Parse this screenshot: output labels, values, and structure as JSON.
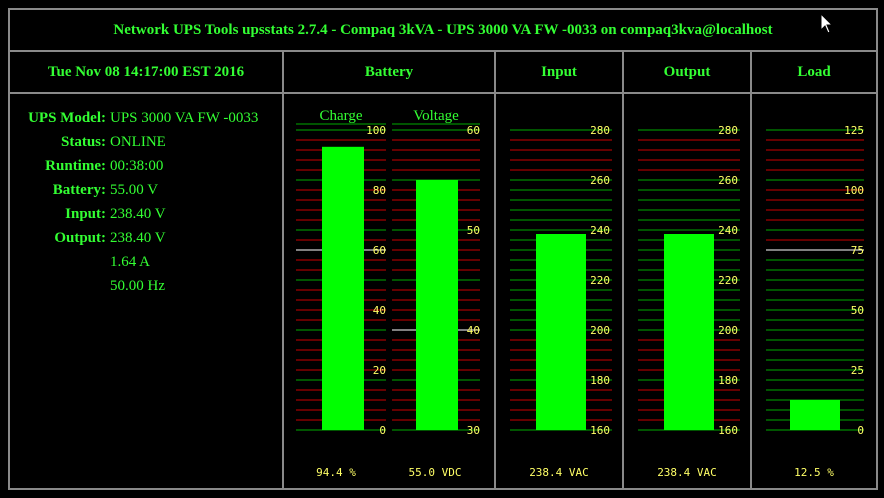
{
  "title": "Network UPS Tools upsstats 2.7.4 - Compaq 3kVA - UPS 3000 VA FW -0033 on compaq3kva@localhost",
  "datetime": "Tue Nov 08 14:17:00 EST 2016",
  "headers": {
    "battery": "Battery",
    "input": "Input",
    "output": "Output",
    "load": "Load"
  },
  "info": [
    {
      "label": "UPS Model:",
      "value": "UPS 3000 VA FW -0033"
    },
    {
      "label": "Status:",
      "value": "ONLINE"
    },
    {
      "label": "Runtime:",
      "value": "00:38:00"
    },
    {
      "label": "Battery:",
      "value": "55.00 V"
    },
    {
      "label": "Input:",
      "value": "238.40 V"
    },
    {
      "label": "Output:",
      "value": "238.40 V"
    },
    {
      "label": "",
      "value": "1.64 A"
    },
    {
      "label": "",
      "value": "50.00 Hz"
    }
  ],
  "gauges": {
    "charge": {
      "label": "Charge",
      "min": 0,
      "max": 100,
      "value": 94.4,
      "ticks": [
        0,
        20,
        40,
        60,
        80,
        100
      ],
      "readout": "94.4 %"
    },
    "voltage": {
      "label": "Voltage",
      "min": 30,
      "max": 60,
      "value": 55.0,
      "ticks": [
        30,
        40,
        50,
        60
      ],
      "readout": "55.0 VDC"
    },
    "input": {
      "min": 160,
      "max": 280,
      "value": 238.4,
      "ticks": [
        160,
        180,
        200,
        220,
        240,
        260,
        280
      ],
      "readout": "238.4 VAC"
    },
    "output": {
      "min": 160,
      "max": 280,
      "value": 238.4,
      "ticks": [
        160,
        180,
        200,
        220,
        240,
        260,
        280
      ],
      "readout": "238.4 VAC"
    },
    "load": {
      "min": 0,
      "max": 125,
      "value": 12.5,
      "ticks": [
        0,
        25,
        50,
        75,
        100,
        125
      ],
      "readout": "12.5 %"
    }
  },
  "colors": {
    "text_green": "#33ff33",
    "bar_green": "#00ff00",
    "tick_yellow": "#ffff66",
    "line_red": "#cc0000",
    "line_green": "#00aa00",
    "line_white": "#ffffff"
  }
}
